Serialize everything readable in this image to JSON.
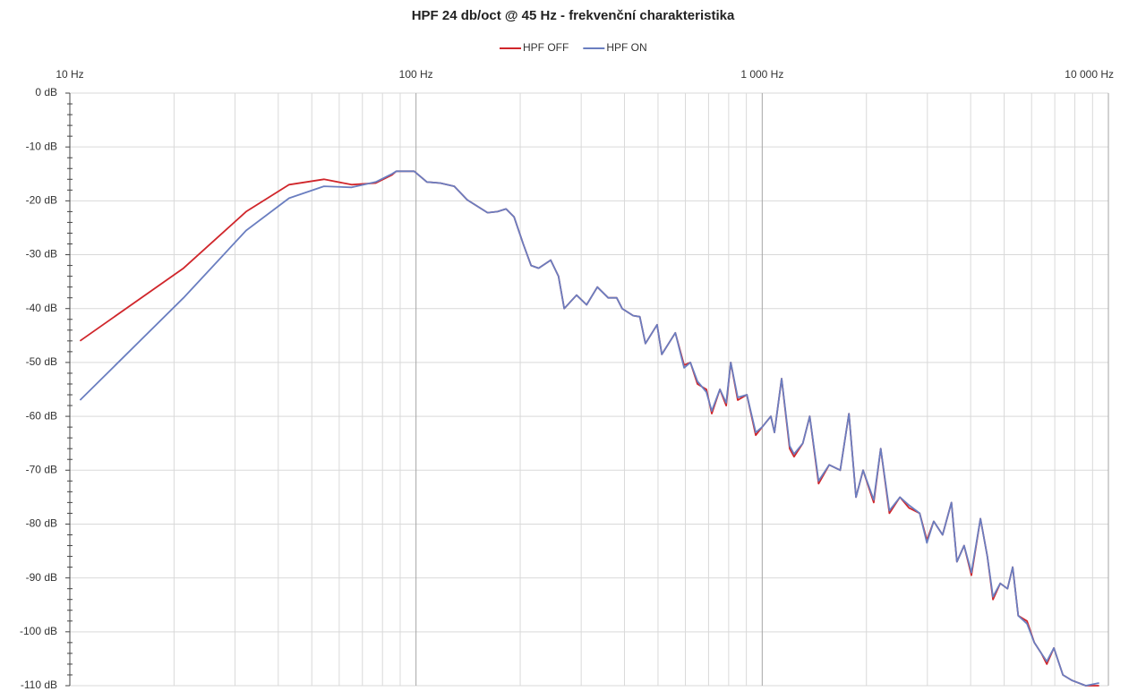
{
  "chart_data": {
    "type": "line",
    "title": "HPF 24 db/oct @ 45 Hz - frekvenční charakteristika",
    "log_x": true,
    "grid": true,
    "legend": "top",
    "xlim": [
      10,
      10000
    ],
    "ylim": [
      -110,
      0
    ],
    "xticks": [
      {
        "value": 10,
        "label": "10 Hz"
      },
      {
        "value": 100,
        "label": "100 Hz"
      },
      {
        "value": 1000,
        "label": "1 000 Hz"
      },
      {
        "value": 10000,
        "label": "10 000 Hz"
      }
    ],
    "yticks": [
      {
        "value": 0,
        "label": "0 dB"
      },
      {
        "value": -10,
        "label": "-10 dB"
      },
      {
        "value": -20,
        "label": "-20 dB"
      },
      {
        "value": -30,
        "label": "-30 dB"
      },
      {
        "value": -40,
        "label": "-40 dB"
      },
      {
        "value": -50,
        "label": "-50 dB"
      },
      {
        "value": -60,
        "label": "-60 dB"
      },
      {
        "value": -70,
        "label": "-70 dB"
      },
      {
        "value": -80,
        "label": "-80 dB"
      },
      {
        "value": -90,
        "label": "-90 dB"
      },
      {
        "value": -100,
        "label": "-100 dB"
      },
      {
        "value": -110,
        "label": "-110 dB"
      }
    ],
    "x": [
      10.7,
      21.3,
      32.3,
      43,
      54.2,
      65.2,
      76.5,
      85.2,
      87.7,
      98.8,
      107.5,
      117.5,
      129,
      140.5,
      161,
      172,
      182,
      192,
      204,
      215,
      226,
      245,
      258,
      268,
      291,
      311,
      334,
      359,
      380,
      394,
      424,
      443,
      460,
      497,
      513,
      561,
      595,
      620,
      650,
      690,
      715,
      755,
      787,
      811,
      850,
      903,
      958,
      1000,
      1059,
      1085,
      1138,
      1200,
      1236,
      1310,
      1372,
      1455,
      1562,
      1680,
      1780,
      1866,
      1956,
      2100,
      2200,
      2330,
      2500,
      2655,
      2850,
      2990,
      3130,
      3320,
      3520,
      3650,
      3830,
      4020,
      4270,
      4470,
      4640,
      4870,
      5110,
      5290,
      5490,
      5820,
      6110,
      6400,
      6640,
      6960,
      7390,
      7840,
      8600,
      9400
    ],
    "series": [
      {
        "name": "HPF OFF",
        "color": "#d0262b",
        "values": [
          -46,
          -32.5,
          -22,
          -17,
          -16,
          -17,
          -16.7,
          -15.2,
          -14.5,
          -14.5,
          -16.5,
          -16.7,
          -17.3,
          -19.8,
          -22.2,
          -22,
          -21.5,
          -23,
          -28,
          -32,
          -32.5,
          -31,
          -34,
          -40,
          -37.5,
          -39.3,
          -36,
          -38,
          -38,
          -40,
          -41.3,
          -41.5,
          -46.5,
          -43,
          -48.5,
          -44.5,
          -50.5,
          -50,
          -54,
          -55,
          -59.5,
          -55,
          -58,
          -50,
          -57,
          -56,
          -63.5,
          -62,
          -60,
          -63,
          -53,
          -66,
          -67.5,
          -65,
          -60,
          -72.5,
          -69,
          -70,
          -59.5,
          -75,
          -70,
          -76,
          -66,
          -78,
          -75,
          -77,
          -78,
          -83,
          -79.5,
          -82,
          -76,
          -87,
          -84,
          -89.5,
          -79,
          -86,
          -94,
          -91,
          -92,
          -88,
          -97,
          -98,
          -102,
          -104,
          -106,
          -103,
          -108,
          -109,
          -110,
          -110
        ]
      },
      {
        "name": "HPF ON",
        "color": "#6a7ec0",
        "values": [
          -57,
          -38,
          -25.5,
          -19.5,
          -17.3,
          -17.5,
          -16.5,
          -15,
          -14.5,
          -14.5,
          -16.5,
          -16.7,
          -17.3,
          -19.8,
          -22.2,
          -22,
          -21.5,
          -23,
          -28,
          -32,
          -32.5,
          -31,
          -34,
          -40,
          -37.5,
          -39.3,
          -36,
          -38,
          -38,
          -40,
          -41.3,
          -41.5,
          -46.5,
          -43,
          -48.5,
          -44.5,
          -51,
          -50,
          -53.5,
          -55.5,
          -59,
          -55,
          -57.5,
          -50,
          -56.5,
          -56,
          -63,
          -62,
          -60,
          -63,
          -53,
          -65.5,
          -67,
          -65,
          -60,
          -72,
          -69,
          -70,
          -59.5,
          -75,
          -70,
          -75.5,
          -66,
          -77.5,
          -75,
          -76.5,
          -78,
          -83.5,
          -79.5,
          -82,
          -76,
          -87,
          -84,
          -89,
          -79,
          -86,
          -93.5,
          -91,
          -92,
          -88,
          -97,
          -98.5,
          -102,
          -104,
          -105.5,
          -103,
          -108,
          -109,
          -110,
          -109.5
        ]
      }
    ]
  }
}
